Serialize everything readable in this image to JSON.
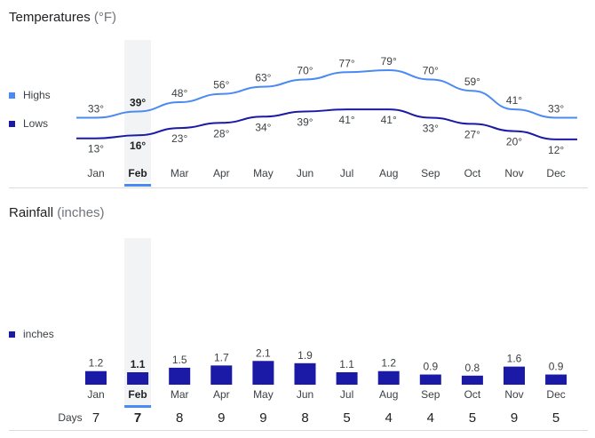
{
  "temperatures": {
    "title": "Temperatures",
    "unit": "(°F)",
    "legend": [
      {
        "label": "Highs",
        "color": "#4a8af4"
      },
      {
        "label": "Lows",
        "color": "#1a1aa6"
      }
    ]
  },
  "rainfall": {
    "title": "Rainfall",
    "unit": "(inches)",
    "legend": {
      "label": "inches",
      "color": "#1a1aa6"
    }
  },
  "days_label": "Days",
  "selected_month": "Feb",
  "colors": {
    "highs": "#4a8af4",
    "lows": "#1a1aa6",
    "bars": "#1a1aa6",
    "highlight": "#f1f3f4",
    "selected_underline": "#4a8af4"
  },
  "chart_data": [
    {
      "type": "line",
      "title": "Temperatures (°F)",
      "categories": [
        "Jan",
        "Feb",
        "Mar",
        "Apr",
        "May",
        "Jun",
        "Jul",
        "Aug",
        "Sep",
        "Oct",
        "Nov",
        "Dec"
      ],
      "series": [
        {
          "name": "Highs",
          "values": [
            33,
            39,
            48,
            56,
            63,
            70,
            77,
            79,
            70,
            59,
            41,
            33
          ],
          "labels": [
            "33°",
            "39°",
            "48°",
            "56°",
            "63°",
            "70°",
            "77°",
            "79°",
            "70°",
            "59°",
            "41°",
            "33°"
          ]
        },
        {
          "name": "Lows",
          "values": [
            13,
            16,
            23,
            28,
            34,
            39,
            41,
            41,
            33,
            27,
            20,
            12
          ],
          "labels": [
            "13°",
            "16°",
            "23°",
            "28°",
            "34°",
            "39°",
            "41°",
            "41°",
            "33°",
            "27°",
            "20°",
            "12°"
          ]
        }
      ],
      "ylim": [
        5,
        85
      ]
    },
    {
      "type": "bar",
      "title": "Rainfall (inches)",
      "categories": [
        "Jan",
        "Feb",
        "Mar",
        "Apr",
        "May",
        "Jun",
        "Jul",
        "Aug",
        "Sep",
        "Oct",
        "Nov",
        "Dec"
      ],
      "values": [
        1.2,
        1.1,
        1.5,
        1.7,
        2.1,
        1.9,
        1.1,
        1.2,
        0.9,
        0.8,
        1.6,
        0.9
      ],
      "labels": [
        "1.2",
        "1.1",
        "1.5",
        "1.7",
        "2.1",
        "1.9",
        "1.1",
        "1.2",
        "0.9",
        "0.8",
        "1.6",
        "0.9"
      ],
      "days": [
        "7",
        "7",
        "8",
        "9",
        "9",
        "8",
        "5",
        "4",
        "4",
        "5",
        "9",
        "5"
      ],
      "ylim": [
        0,
        2.2
      ]
    }
  ]
}
